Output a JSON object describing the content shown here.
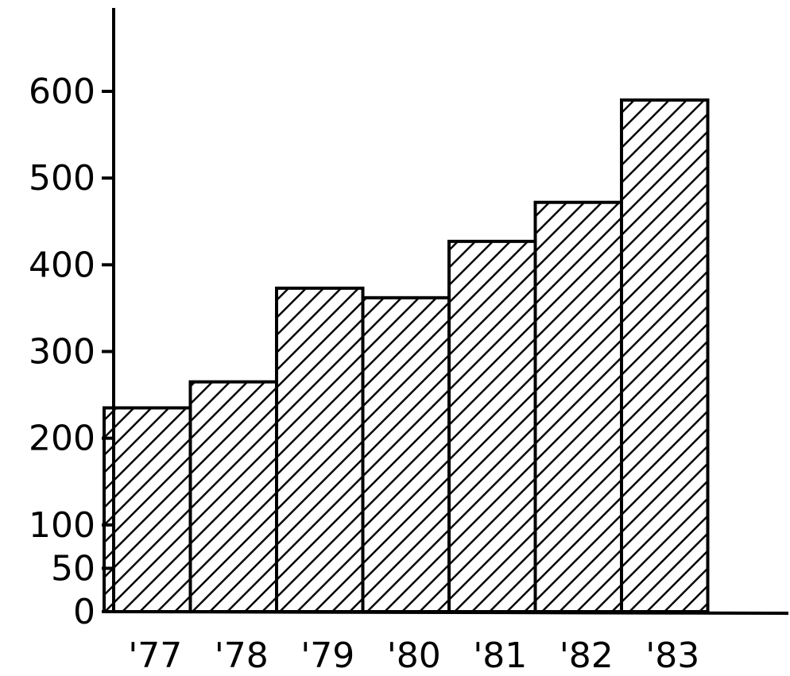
{
  "chart_data": {
    "type": "bar",
    "title": "",
    "xlabel": "",
    "ylabel": "",
    "categories": [
      "'77",
      "'78",
      "'79",
      "'80",
      "'81",
      "'82",
      "'83"
    ],
    "values": [
      235,
      265,
      373,
      362,
      427,
      472,
      590
    ],
    "ylim": [
      0,
      600
    ],
    "yticks": [
      0,
      50,
      100,
      200,
      300,
      400,
      500,
      600
    ],
    "ytick_labels": [
      "0",
      "50",
      "100",
      "200",
      "300",
      "400",
      "500",
      "600"
    ],
    "grid": false,
    "legend": "none",
    "bar_fill": "diagonal hatch",
    "colors": {
      "stroke": "#000000",
      "background": "#ffffff"
    }
  }
}
